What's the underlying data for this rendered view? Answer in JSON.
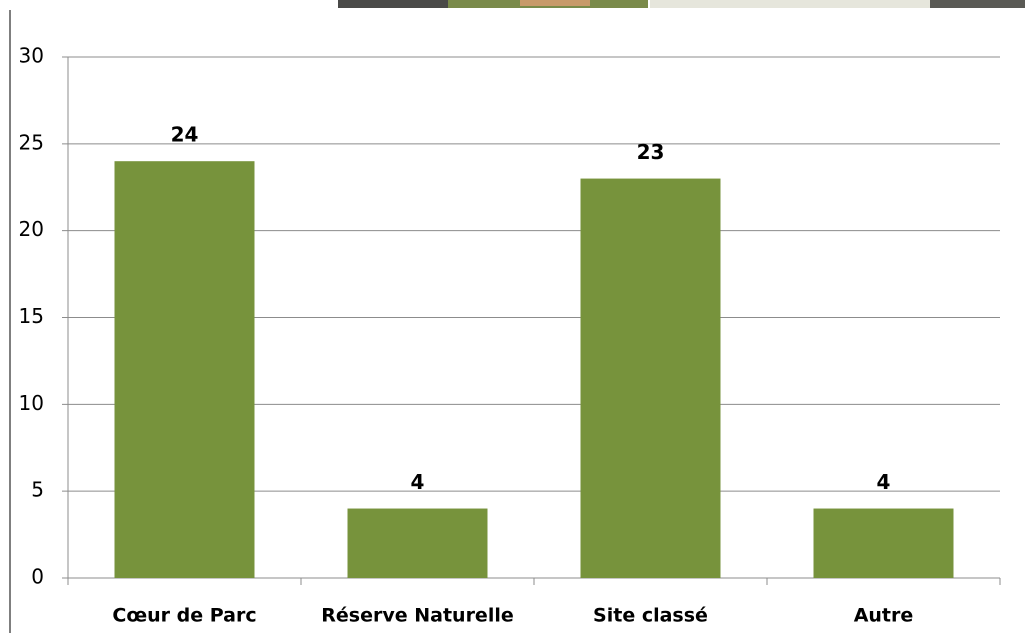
{
  "chart_data": {
    "type": "bar",
    "categories": [
      "Cœur de Parc",
      "Réserve Naturelle",
      "Site classé",
      "Autre"
    ],
    "values": [
      24,
      4,
      23,
      4
    ],
    "color": "#77933c",
    "ylim": [
      0,
      30
    ],
    "yticks": [
      0,
      5,
      10,
      15,
      20,
      25,
      30
    ],
    "grid": true
  }
}
